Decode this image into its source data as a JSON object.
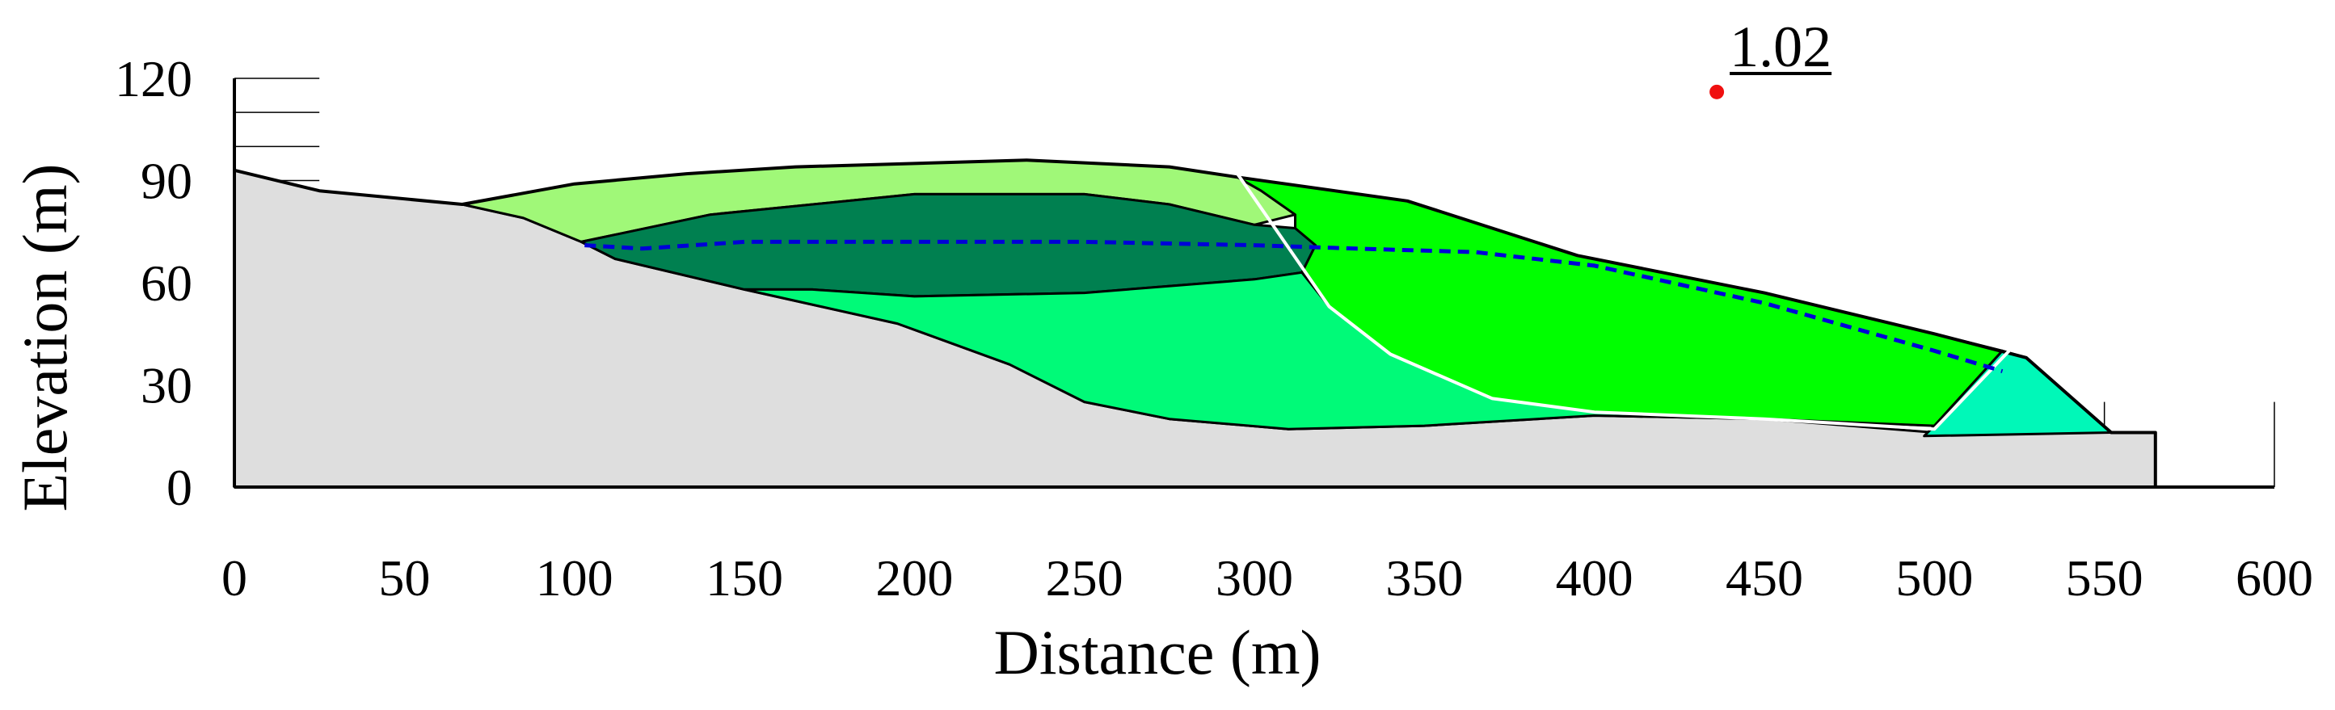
{
  "chart_data": {
    "type": "area",
    "title": "",
    "xlabel": "Distance (m)",
    "ylabel": "Elevation (m)",
    "xlim": [
      0,
      600
    ],
    "ylim": [
      0,
      120
    ],
    "x_ticks": [
      "0",
      "50",
      "100",
      "150",
      "200",
      "250",
      "300",
      "350",
      "400",
      "450",
      "500",
      "550",
      "600"
    ],
    "y_ticks": [
      "0",
      "30",
      "60",
      "90",
      "120"
    ],
    "factor_of_safety": {
      "label": "1.02",
      "point": [
        436,
        116
      ]
    },
    "regions": [
      {
        "name": "bedrock",
        "color": "#dedede",
        "points": [
          [
            0,
            93
          ],
          [
            25,
            87
          ],
          [
            67,
            83
          ],
          [
            85,
            79
          ],
          [
            102,
            72
          ],
          [
            112,
            67
          ],
          [
            150,
            58
          ],
          [
            195,
            48
          ],
          [
            228,
            36
          ],
          [
            250,
            25
          ],
          [
            275,
            20
          ],
          [
            310,
            17
          ],
          [
            350,
            18
          ],
          [
            400,
            21
          ],
          [
            450,
            20
          ],
          [
            500,
            16
          ],
          [
            565,
            16
          ],
          [
            565,
            0
          ],
          [
            0,
            0
          ]
        ]
      },
      {
        "name": "upper-waste-layer",
        "color": "#a0f878",
        "points": [
          [
            67,
            83
          ],
          [
            100,
            89
          ],
          [
            133,
            92
          ],
          [
            165,
            94
          ],
          [
            200,
            95
          ],
          [
            233,
            96
          ],
          [
            275,
            94
          ],
          [
            295,
            91
          ],
          [
            302,
            87
          ],
          [
            312,
            80
          ],
          [
            300,
            77
          ],
          [
            275,
            83
          ],
          [
            250,
            86
          ],
          [
            200,
            86
          ],
          [
            140,
            80
          ],
          [
            102,
            72
          ],
          [
            85,
            79
          ]
        ]
      },
      {
        "name": "core-waste-layer",
        "color": "#008050",
        "points": [
          [
            102,
            72
          ],
          [
            140,
            80
          ],
          [
            200,
            86
          ],
          [
            250,
            86
          ],
          [
            275,
            83
          ],
          [
            300,
            77
          ],
          [
            312,
            76
          ],
          [
            318,
            71
          ],
          [
            314,
            63
          ],
          [
            300,
            61
          ],
          [
            250,
            57
          ],
          [
            200,
            56
          ],
          [
            170,
            58
          ],
          [
            150,
            58
          ],
          [
            112,
            67
          ]
        ]
      },
      {
        "name": "lower-waste-layer",
        "color": "#00fa78",
        "points": [
          [
            150,
            58
          ],
          [
            170,
            58
          ],
          [
            200,
            56
          ],
          [
            250,
            57
          ],
          [
            300,
            61
          ],
          [
            314,
            63
          ],
          [
            322,
            53
          ],
          [
            340,
            39
          ],
          [
            370,
            26
          ],
          [
            400,
            22
          ],
          [
            420,
            21
          ],
          [
            450,
            20
          ],
          [
            400,
            21
          ],
          [
            350,
            18
          ],
          [
            310,
            17
          ],
          [
            275,
            20
          ],
          [
            250,
            25
          ],
          [
            228,
            36
          ],
          [
            195,
            48
          ]
        ]
      },
      {
        "name": "pushback-layer",
        "color": "#00ff00",
        "points": [
          [
            295,
            91
          ],
          [
            345,
            84
          ],
          [
            395,
            68
          ],
          [
            450,
            57
          ],
          [
            500,
            45
          ],
          [
            520,
            40
          ],
          [
            500,
            18
          ],
          [
            450,
            20
          ],
          [
            420,
            21
          ],
          [
            400,
            22
          ],
          [
            370,
            26
          ],
          [
            340,
            39
          ],
          [
            322,
            53
          ],
          [
            314,
            63
          ],
          [
            318,
            71
          ],
          [
            312,
            76
          ],
          [
            312,
            80
          ],
          [
            302,
            87
          ]
        ]
      },
      {
        "name": "toe-buttress",
        "color": "#00f8b8",
        "points": [
          [
            520,
            40
          ],
          [
            527,
            38
          ],
          [
            552,
            16
          ],
          [
            497,
            15
          ],
          [
            500,
            18
          ]
        ]
      }
    ],
    "slip_surface": {
      "color": "#ffffff",
      "points": [
        [
          295,
          92
        ],
        [
          322,
          53
        ],
        [
          340,
          39
        ],
        [
          370,
          26
        ],
        [
          400,
          22
        ],
        [
          450,
          20
        ],
        [
          500,
          17
        ],
        [
          522,
          40
        ]
      ]
    },
    "water_table": {
      "color": "#0000d8",
      "points": [
        [
          103,
          71
        ],
        [
          120,
          70
        ],
        [
          150,
          72
        ],
        [
          170,
          72
        ],
        [
          200,
          72
        ],
        [
          250,
          72
        ],
        [
          300,
          71
        ],
        [
          330,
          70
        ],
        [
          365,
          69
        ],
        [
          400,
          65
        ],
        [
          450,
          54
        ],
        [
          500,
          40
        ],
        [
          520,
          34
        ]
      ]
    },
    "profile_outline": {
      "color": "#000000",
      "points": [
        [
          0,
          93
        ],
        [
          25,
          87
        ],
        [
          67,
          83
        ],
        [
          100,
          89
        ],
        [
          133,
          92
        ],
        [
          165,
          94
        ],
        [
          200,
          95
        ],
        [
          233,
          96
        ],
        [
          275,
          94
        ],
        [
          295,
          91
        ],
        [
          345,
          84
        ],
        [
          395,
          68
        ],
        [
          450,
          57
        ],
        [
          500,
          45
        ],
        [
          527,
          38
        ],
        [
          552,
          16
        ],
        [
          565,
          16
        ],
        [
          565,
          0
        ]
      ]
    }
  }
}
